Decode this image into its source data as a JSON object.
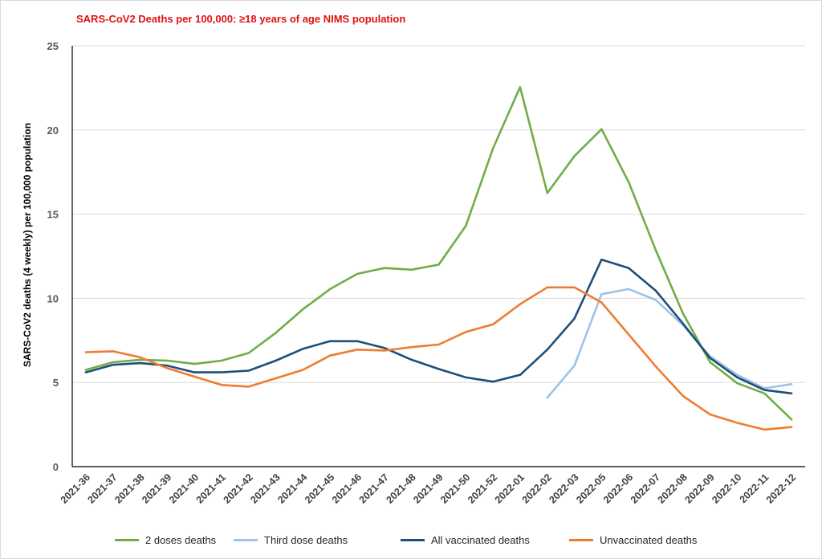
{
  "chart_data": {
    "type": "line",
    "title": "SARS-CoV2 Deaths per 100,000:  ≥18  years of age NIMS population",
    "ylabel": "SARS-CoV2 deaths (4 weekly) per 100,000  population",
    "xlabel": "",
    "ylim": [
      0,
      25
    ],
    "yticks": [
      0,
      5,
      10,
      15,
      20,
      25
    ],
    "grid": "horizontal",
    "legend_position": "bottom",
    "categories": [
      "2021-36",
      "2021-37",
      "2021-38",
      "2021-39",
      "2021-40",
      "2021-41",
      "2021-42",
      "2021-43",
      "2021-44",
      "2021-45",
      "2021-46",
      "2021-47",
      "2021-48",
      "2021-49",
      "2021-50",
      "2021-52",
      "2022-01",
      "2022-02",
      "2022-03",
      "2022-05",
      "2022-06",
      "2022-07",
      "2022-08",
      "2022-09",
      "2022-10",
      "2022-11",
      "2022-12"
    ],
    "series": [
      {
        "name": "2 doses deaths",
        "color": "#70ad47",
        "values": [
          5.75,
          6.2,
          6.35,
          6.3,
          6.1,
          6.3,
          6.75,
          7.95,
          9.35,
          10.55,
          11.45,
          11.8,
          11.7,
          12.0,
          14.3,
          18.9,
          22.55,
          16.25,
          18.45,
          20.05,
          16.9,
          12.85,
          9.1,
          6.2,
          4.95,
          4.35,
          2.8
        ]
      },
      {
        "name": "Third dose deaths",
        "color": "#9dc3e6",
        "values": [
          null,
          null,
          null,
          null,
          null,
          null,
          null,
          null,
          null,
          null,
          null,
          null,
          null,
          null,
          null,
          null,
          null,
          4.1,
          6.0,
          10.25,
          10.55,
          9.9,
          8.4,
          6.55,
          5.45,
          4.65,
          4.9
        ]
      },
      {
        "name": "All vaccinated deaths",
        "color": "#1f4e79",
        "values": [
          5.6,
          6.05,
          6.15,
          6.0,
          5.6,
          5.6,
          5.7,
          6.3,
          7.0,
          7.45,
          7.45,
          7.05,
          6.35,
          5.8,
          5.3,
          5.05,
          5.45,
          6.95,
          8.8,
          12.3,
          11.8,
          10.45,
          8.5,
          6.45,
          5.3,
          4.55,
          4.35
        ]
      },
      {
        "name": "Unvaccinated deaths",
        "color": "#ed7d31",
        "values": [
          6.8,
          6.85,
          6.5,
          5.85,
          5.35,
          4.85,
          4.75,
          5.25,
          5.75,
          6.6,
          6.95,
          6.9,
          7.1,
          7.25,
          8.0,
          8.45,
          9.65,
          10.65,
          10.65,
          9.75,
          7.85,
          5.95,
          4.2,
          3.1,
          2.6,
          2.2,
          2.35
        ]
      }
    ]
  }
}
